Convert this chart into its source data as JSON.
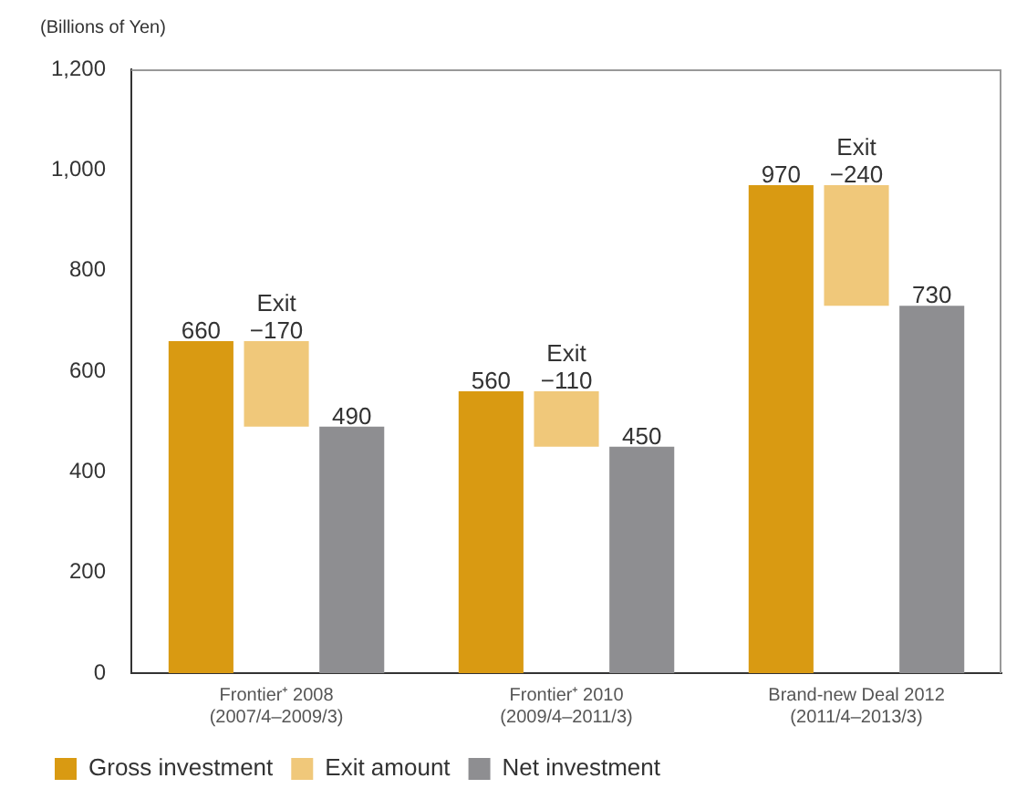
{
  "chart_data": {
    "type": "bar",
    "ylabel": "(Billions of Yen)",
    "categories": [
      "Frontier⁺ 2008\n(2007/4–2009/3)",
      "Frontier⁺ 2010\n(2009/4–2011/3)",
      "Brand-new Deal 2012\n(2011/4–2013/3)"
    ],
    "series": [
      {
        "name": "Gross investment",
        "color": "#d99a12",
        "values": [
          660,
          560,
          970
        ],
        "value_labels": [
          "660",
          "560",
          "970"
        ]
      },
      {
        "name": "Exit amount",
        "color": "#f0c87a",
        "values": [
          -170,
          -110,
          -240
        ],
        "base": [
          660,
          560,
          970
        ],
        "value_labels": [
          "Exit\n−170",
          "Exit\n−110",
          "Exit\n−240"
        ]
      },
      {
        "name": "Net investment",
        "color": "#8e8e91",
        "values": [
          490,
          450,
          730
        ],
        "value_labels": [
          "490",
          "450",
          "730"
        ]
      }
    ],
    "ylim": [
      0,
      1200
    ],
    "yticks": [
      {
        "value": 0,
        "label": "0"
      },
      {
        "value": 200,
        "label": "200"
      },
      {
        "value": 400,
        "label": "400"
      },
      {
        "value": 600,
        "label": "600"
      },
      {
        "value": 800,
        "label": "800"
      },
      {
        "value": 1000,
        "label": "1,000"
      },
      {
        "value": 1200,
        "label": "1,200"
      }
    ],
    "grid": false,
    "legend": "bottom left"
  }
}
